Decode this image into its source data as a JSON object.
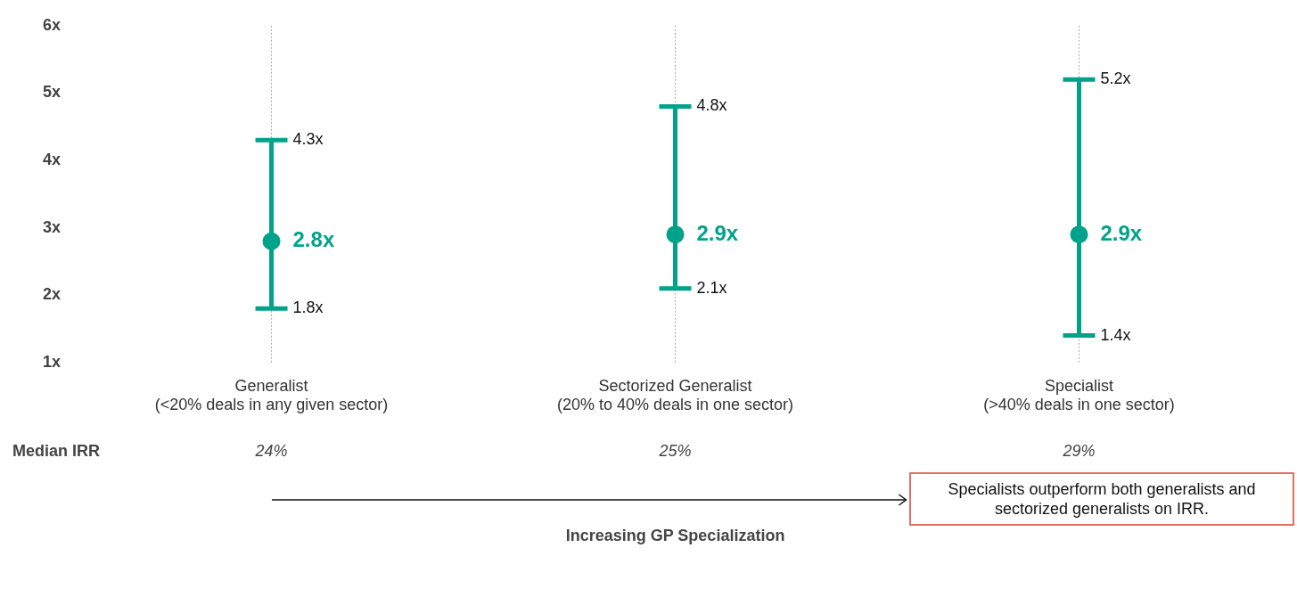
{
  "chart_data": {
    "type": "scatter",
    "categories": [
      "Generalist\n(<20% deals in any given sector)",
      "Sectorized Generalist\n(20% to 40% deals in one sector)",
      "Specialist\n(>40% deals in one sector)"
    ],
    "values": [
      2.8,
      2.9,
      2.9
    ],
    "errors": [
      [
        1.8,
        4.3
      ],
      [
        2.1,
        4.8
      ],
      [
        1.4,
        5.2
      ]
    ],
    "value_labels": [
      "2.8x",
      "2.9x",
      "2.9x"
    ],
    "color": "#00a38a",
    "marker": "circle",
    "grid": "x",
    "ylim": [
      1,
      6
    ],
    "yticks": [
      {
        "value": 1,
        "label": "1x"
      },
      {
        "value": 2,
        "label": "2x"
      },
      {
        "value": 3,
        "label": "3x"
      },
      {
        "value": 4,
        "label": "4x"
      },
      {
        "value": 5,
        "label": "5x"
      },
      {
        "value": 6,
        "label": "6x"
      }
    ],
    "annotations": [
      "Median IRR",
      "24%",
      "25%",
      "29%",
      "Increasing GP Specialization",
      "Specialists outperform both generalists and sectorized generalists on IRR.",
      {
        "text": "4.3x",
        "x": "Generalist\n(<20% deals in any given sector)",
        "y": 4.3
      },
      {
        "text": "1.8x",
        "x": "Generalist\n(<20% deals in any given sector)",
        "y": 1.8
      },
      {
        "text": "4.8x",
        "x": "Sectorized Generalist\n(20% to 40% deals in one sector)",
        "y": 4.8
      },
      {
        "text": "2.1x",
        "x": "Sectorized Generalist\n(20% to 40% deals in one sector)",
        "y": 2.1
      },
      {
        "text": "5.2x",
        "x": "Specialist\n(>40% deals in one sector)",
        "y": 5.2
      },
      {
        "text": "1.4x",
        "x": "Specialist\n(>40% deals in one sector)",
        "y": 1.4
      }
    ]
  }
}
